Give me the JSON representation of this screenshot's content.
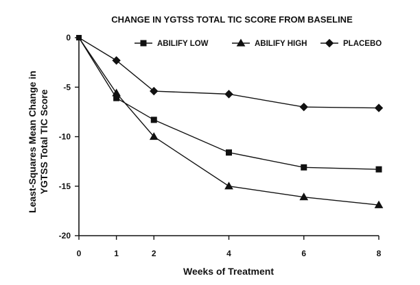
{
  "chart_data": {
    "type": "line",
    "title": "CHANGE IN YGTSS TOTAL TIC SCORE FROM BASELINE",
    "xlabel": "Weeks of Treatment",
    "ylabel_lines": [
      "Least-Squares Mean Change in",
      "YGTSS Total TIC Score"
    ],
    "x": [
      0,
      1,
      2,
      4,
      6,
      8
    ],
    "xlim": [
      0,
      8
    ],
    "ylim": [
      -20,
      0
    ],
    "xticks": [
      0,
      1,
      2,
      4,
      6,
      8
    ],
    "yticks": [
      0,
      -5,
      -10,
      -15,
      -20
    ],
    "grid": false,
    "legend_position": "top-right",
    "series": [
      {
        "name": "ABILIFY LOW",
        "marker": "square",
        "values": [
          0,
          -6.1,
          -8.3,
          -11.6,
          -13.1,
          -13.3
        ]
      },
      {
        "name": "ABILIFY HIGH",
        "marker": "triangle",
        "values": [
          0,
          -5.6,
          -10.0,
          -15.0,
          -16.1,
          -16.9
        ]
      },
      {
        "name": "PLACEBO",
        "marker": "diamond",
        "values": [
          0,
          -2.3,
          -5.4,
          -5.7,
          -7.0,
          -7.1
        ]
      }
    ]
  }
}
